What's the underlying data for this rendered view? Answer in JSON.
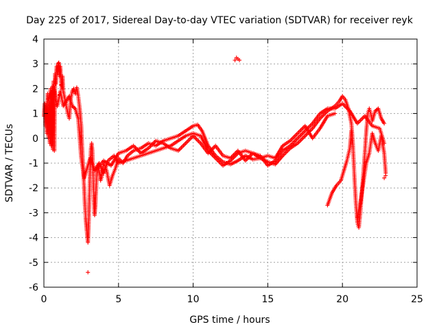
{
  "chart_data": {
    "type": "scatter",
    "title": "Day 225 of 2017, Sidereal Day-to-day VTEC variation (SDTVAR) for receiver reyk",
    "xlabel": "GPS time / hours",
    "ylabel": "SDTVAR / TECUs",
    "xlim": [
      0,
      25
    ],
    "ylim": [
      -6,
      4
    ],
    "xticks": [
      "0",
      "5",
      "10",
      "15",
      "20",
      "25"
    ],
    "yticks": [
      "-6",
      "-5",
      "-4",
      "-3",
      "-2",
      "-1",
      "0",
      "1",
      "2",
      "3",
      "4"
    ],
    "grid": true,
    "marker": "+",
    "color": "#ff0000",
    "series": [
      {
        "name": "SDTVAR",
        "tracks": [
          [
            [
              0.0,
              0.9
            ],
            [
              0.05,
              1.4
            ],
            [
              0.1,
              0.5
            ],
            [
              0.15,
              1.3
            ],
            [
              0.2,
              0.2
            ],
            [
              0.25,
              1.8
            ],
            [
              0.3,
              0.0
            ],
            [
              0.35,
              1.5
            ],
            [
              0.4,
              -0.2
            ],
            [
              0.45,
              2.0
            ],
            [
              0.5,
              -0.3
            ],
            [
              0.55,
              1.9
            ],
            [
              0.6,
              -0.45
            ],
            [
              0.65,
              2.3
            ],
            [
              0.7,
              -0.5
            ],
            [
              0.75,
              2.6
            ],
            [
              0.8,
              2.2
            ],
            [
              0.85,
              2.9
            ],
            [
              0.9,
              2.6
            ],
            [
              0.95,
              3.0
            ],
            [
              1.0,
              3.05
            ],
            [
              1.05,
              2.5
            ],
            [
              1.1,
              2.9
            ],
            [
              1.15,
              2.3
            ],
            [
              1.2,
              2.0
            ],
            [
              1.25,
              2.5
            ],
            [
              1.3,
              1.9
            ],
            [
              1.4,
              1.6
            ],
            [
              1.5,
              1.3
            ],
            [
              1.6,
              1.0
            ],
            [
              1.7,
              0.8
            ],
            [
              1.8,
              1.6
            ],
            [
              1.9,
              1.9
            ],
            [
              2.0,
              2.0
            ],
            [
              2.1,
              1.8
            ],
            [
              2.2,
              2.05
            ],
            [
              2.3,
              1.7
            ],
            [
              2.4,
              1.2
            ],
            [
              2.5,
              0.5
            ],
            [
              2.55,
              -0.2
            ],
            [
              2.6,
              -0.8
            ],
            [
              2.65,
              -1.4
            ],
            [
              2.7,
              -2.0
            ],
            [
              2.75,
              -2.7
            ],
            [
              2.8,
              -3.2
            ],
            [
              2.85,
              -3.6
            ],
            [
              2.9,
              -3.9
            ],
            [
              2.95,
              -4.2
            ],
            [
              3.0,
              -3.5
            ],
            [
              3.05,
              -2.3
            ],
            [
              3.1,
              -1.2
            ],
            [
              3.15,
              -0.4
            ],
            [
              3.2,
              -0.2
            ],
            [
              3.25,
              -0.5
            ],
            [
              3.3,
              -1.5
            ],
            [
              3.35,
              -2.5
            ],
            [
              3.4,
              -3.1
            ],
            [
              3.45,
              -2.7
            ],
            [
              3.5,
              -2.0
            ],
            [
              3.55,
              -1.4
            ],
            [
              3.6,
              -1.1
            ],
            [
              3.7,
              -1.3
            ],
            [
              3.8,
              -1.7
            ],
            [
              3.9,
              -1.5
            ],
            [
              4.0,
              -1.0
            ],
            [
              4.2,
              -1.3
            ],
            [
              4.4,
              -1.9
            ],
            [
              4.6,
              -1.5
            ],
            [
              4.8,
              -1.2
            ],
            [
              5.0,
              -0.8
            ],
            [
              5.3,
              -1.0
            ],
            [
              5.6,
              -0.7
            ],
            [
              6.0,
              -0.5
            ],
            [
              6.5,
              -0.4
            ],
            [
              7.0,
              -0.2
            ],
            [
              7.5,
              -0.3
            ],
            [
              8.0,
              -0.1
            ],
            [
              8.5,
              0.0
            ],
            [
              9.0,
              0.1
            ],
            [
              9.5,
              0.3
            ],
            [
              10.0,
              0.5
            ],
            [
              10.3,
              0.55
            ],
            [
              10.6,
              0.3
            ],
            [
              11.0,
              -0.3
            ],
            [
              11.5,
              -0.7
            ],
            [
              12.0,
              -0.95
            ],
            [
              12.5,
              -1.05
            ],
            [
              13.0,
              -0.9
            ],
            [
              13.5,
              -0.7
            ],
            [
              14.0,
              -0.85
            ],
            [
              14.5,
              -0.8
            ],
            [
              15.0,
              -0.95
            ],
            [
              15.5,
              -1.05
            ],
            [
              16.0,
              -0.7
            ],
            [
              16.5,
              -0.4
            ],
            [
              17.0,
              -0.2
            ],
            [
              17.5,
              0.1
            ],
            [
              18.0,
              0.4
            ],
            [
              18.5,
              0.8
            ],
            [
              19.0,
              1.1
            ],
            [
              19.5,
              1.3
            ],
            [
              19.8,
              1.5
            ],
            [
              20.0,
              1.7
            ],
            [
              20.2,
              1.55
            ],
            [
              20.4,
              1.2
            ],
            [
              20.6,
              0.6
            ],
            [
              20.7,
              -0.2
            ],
            [
              20.8,
              -1.5
            ],
            [
              20.9,
              -2.6
            ],
            [
              21.0,
              -3.4
            ],
            [
              21.1,
              -3.6
            ],
            [
              21.2,
              -3.0
            ],
            [
              21.3,
              -2.2
            ],
            [
              21.4,
              -1.4
            ],
            [
              21.5,
              -0.6
            ],
            [
              21.6,
              0.3
            ],
            [
              21.7,
              1.0
            ],
            [
              21.8,
              1.2
            ],
            [
              21.9,
              1.0
            ],
            [
              22.0,
              0.7
            ],
            [
              22.2,
              1.1
            ],
            [
              22.4,
              1.2
            ],
            [
              22.6,
              0.8
            ],
            [
              22.8,
              0.6
            ]
          ],
          [
            [
              0.3,
              1.6
            ],
            [
              0.4,
              1.8
            ],
            [
              0.5,
              1.7
            ],
            [
              0.6,
              2.1
            ],
            [
              0.7,
              1.9
            ],
            [
              0.8,
              1.5
            ],
            [
              0.9,
              1.3
            ],
            [
              1.0,
              1.6
            ],
            [
              1.1,
              1.9
            ],
            [
              1.2,
              1.6
            ],
            [
              1.3,
              1.3
            ],
            [
              1.5,
              1.5
            ],
            [
              1.7,
              1.7
            ],
            [
              1.9,
              1.3
            ],
            [
              2.1,
              1.2
            ],
            [
              2.3,
              0.8
            ],
            [
              2.5,
              -0.8
            ],
            [
              2.7,
              -1.6
            ],
            [
              2.9,
              -1.2
            ],
            [
              3.1,
              -0.8
            ],
            [
              3.4,
              -1.3
            ],
            [
              3.7,
              -1.0
            ],
            [
              4.0,
              -1.4
            ],
            [
              4.3,
              -0.9
            ],
            [
              4.7,
              -0.7
            ],
            [
              5.0,
              -1.0
            ],
            [
              5.5,
              -0.9
            ],
            [
              6.0,
              -0.8
            ],
            [
              6.5,
              -0.7
            ],
            [
              7.0,
              -0.6
            ],
            [
              7.5,
              -0.5
            ],
            [
              8.0,
              -0.4
            ],
            [
              8.5,
              -0.3
            ],
            [
              9.0,
              -0.1
            ],
            [
              9.5,
              0.1
            ],
            [
              10.0,
              0.2
            ],
            [
              10.5,
              0.1
            ],
            [
              11.0,
              -0.5
            ],
            [
              11.5,
              -0.8
            ],
            [
              12.0,
              -1.1
            ],
            [
              12.5,
              -0.9
            ],
            [
              13.0,
              -0.6
            ],
            [
              13.5,
              -0.5
            ],
            [
              14.0,
              -0.6
            ],
            [
              14.5,
              -0.7
            ],
            [
              15.0,
              -1.1
            ],
            [
              15.5,
              -0.9
            ],
            [
              16.0,
              -0.5
            ],
            [
              16.5,
              -0.3
            ],
            [
              17.0,
              0.0
            ],
            [
              17.5,
              0.3
            ],
            [
              18.0,
              0.6
            ],
            [
              18.5,
              1.0
            ],
            [
              19.0,
              1.2
            ],
            [
              19.5,
              1.2
            ],
            [
              20.0,
              1.4
            ],
            [
              20.5,
              1.1
            ],
            [
              21.0,
              0.6
            ],
            [
              21.5,
              0.9
            ],
            [
              22.0,
              0.5
            ],
            [
              22.5,
              0.4
            ],
            [
              22.8,
              -0.2
            ]
          ],
          [
            [
              3.6,
              -1.2
            ],
            [
              4.0,
              -0.9
            ],
            [
              4.5,
              -1.1
            ],
            [
              5.0,
              -0.6
            ],
            [
              5.5,
              -0.5
            ],
            [
              6.0,
              -0.3
            ],
            [
              6.5,
              -0.6
            ],
            [
              7.0,
              -0.4
            ],
            [
              7.5,
              -0.1
            ],
            [
              8.0,
              -0.2
            ],
            [
              8.5,
              -0.4
            ],
            [
              9.0,
              -0.5
            ],
            [
              9.5,
              -0.2
            ],
            [
              10.0,
              0.1
            ],
            [
              10.5,
              -0.2
            ],
            [
              11.0,
              -0.6
            ],
            [
              11.5,
              -0.3
            ],
            [
              12.0,
              -0.7
            ],
            [
              12.5,
              -0.8
            ],
            [
              13.0,
              -0.5
            ],
            [
              13.5,
              -0.9
            ],
            [
              14.0,
              -0.6
            ],
            [
              14.5,
              -0.8
            ],
            [
              15.0,
              -0.7
            ],
            [
              15.5,
              -0.8
            ],
            [
              16.0,
              -0.3
            ],
            [
              16.5,
              -0.1
            ],
            [
              17.0,
              0.2
            ],
            [
              17.5,
              0.5
            ],
            [
              18.0,
              0.0
            ],
            [
              18.5,
              0.4
            ],
            [
              19.0,
              0.9
            ],
            [
              19.5,
              1.0
            ]
          ],
          [
            [
              19.0,
              -2.7
            ],
            [
              19.3,
              -2.2
            ],
            [
              19.6,
              -1.9
            ],
            [
              19.9,
              -1.7
            ],
            [
              20.1,
              -1.3
            ],
            [
              20.3,
              -0.9
            ],
            [
              20.5,
              -0.4
            ],
            [
              20.6,
              0.3
            ]
          ],
          [
            [
              21.0,
              -3.2
            ],
            [
              21.2,
              -2.6
            ],
            [
              21.4,
              -1.8
            ],
            [
              21.6,
              -1.0
            ],
            [
              21.8,
              -0.6
            ],
            [
              22.0,
              0.2
            ],
            [
              22.2,
              -0.2
            ],
            [
              22.4,
              -0.5
            ],
            [
              22.6,
              0.1
            ],
            [
              22.8,
              -0.6
            ],
            [
              22.9,
              -1.4
            ]
          ]
        ],
        "isolated_points": [
          [
            2.95,
            -5.4
          ],
          [
            12.8,
            3.15
          ],
          [
            12.9,
            3.25
          ],
          [
            13.0,
            3.2
          ],
          [
            13.1,
            3.15
          ],
          [
            22.8,
            -1.6
          ],
          [
            22.9,
            -1.5
          ],
          [
            1.05,
            1.75
          ],
          [
            1.15,
            2.15
          ]
        ]
      }
    ]
  }
}
